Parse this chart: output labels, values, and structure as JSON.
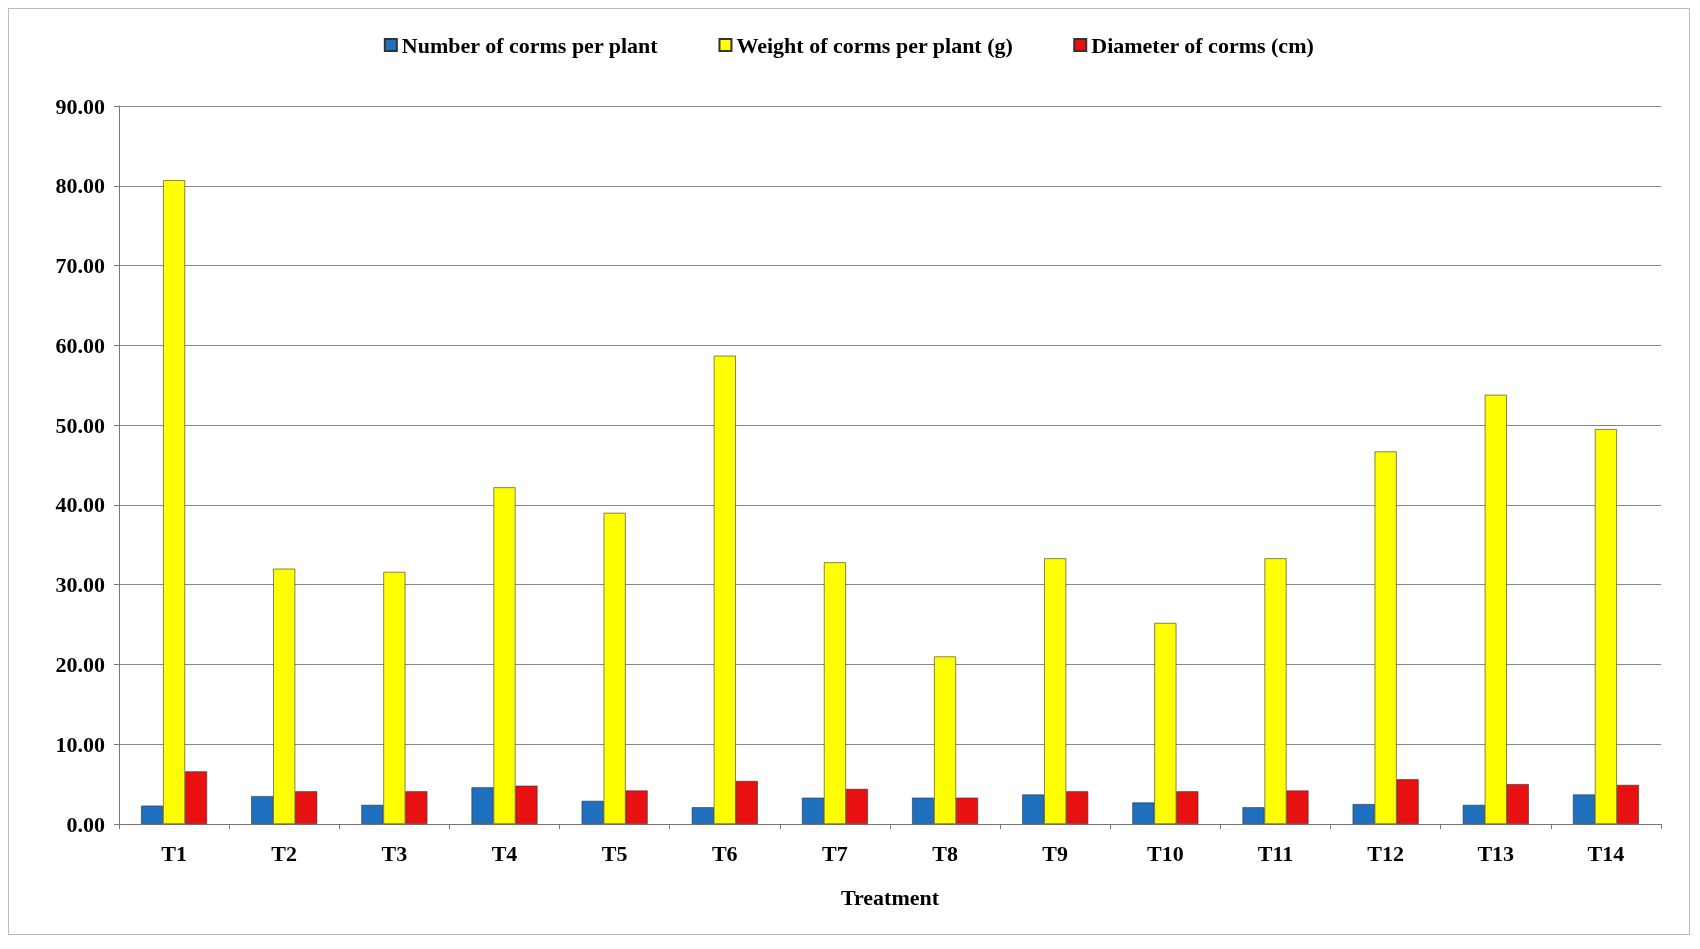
{
  "chart_data": {
    "type": "bar",
    "xlabel": "Treatment",
    "categories": [
      "T1",
      "T2",
      "T3",
      "T4",
      "T5",
      "T6",
      "T7",
      "T8",
      "T9",
      "T10",
      "T11",
      "T12",
      "T13",
      "T14"
    ],
    "series": [
      {
        "name": "Number of corms per plant",
        "color": "#1f6fbf",
        "values": [
          2.3,
          3.5,
          2.4,
          4.6,
          2.9,
          2.1,
          3.3,
          3.3,
          3.7,
          2.7,
          2.1,
          2.5,
          2.4,
          3.7
        ]
      },
      {
        "name": "Weight of corms per plant (g)",
        "color": "#ffff00",
        "values": [
          80.7,
          32.0,
          31.6,
          42.2,
          39.0,
          58.7,
          32.8,
          21.0,
          33.3,
          25.2,
          33.3,
          46.7,
          53.8,
          49.5
        ]
      },
      {
        "name": "Diameter of corms (cm)",
        "color": "#e81010",
        "values": [
          6.6,
          4.1,
          4.1,
          4.8,
          4.2,
          5.4,
          4.4,
          3.3,
          4.1,
          4.1,
          4.2,
          5.6,
          5.0,
          4.9
        ]
      }
    ],
    "ylim": [
      0,
      90
    ],
    "yticks": [
      {
        "value": 0,
        "label": "0.00"
      },
      {
        "value": 10,
        "label": "10.00"
      },
      {
        "value": 20,
        "label": "20.00"
      },
      {
        "value": 30,
        "label": "30.00"
      },
      {
        "value": 40,
        "label": "40.00"
      },
      {
        "value": 50,
        "label": "50.00"
      },
      {
        "value": 60,
        "label": "60.00"
      },
      {
        "value": 70,
        "label": "70.00"
      },
      {
        "value": 80,
        "label": "80.00"
      },
      {
        "value": 90,
        "label": "90.00"
      }
    ],
    "grid": "y",
    "legend": "top"
  }
}
